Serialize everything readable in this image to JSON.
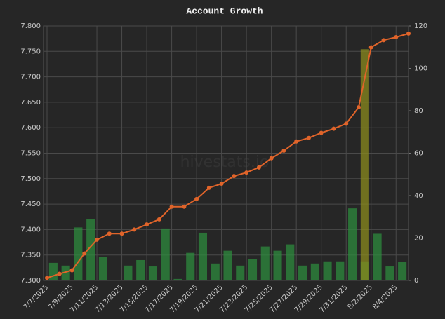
{
  "chart_data": {
    "type": "combo",
    "title": "Account Growth",
    "watermark": "hivestats.io",
    "categories": [
      "7/7/2025",
      null,
      "7/9/2025",
      null,
      "7/11/2025",
      null,
      "7/13/2025",
      null,
      "7/15/2025",
      null,
      "7/17/2025",
      null,
      "7/19/2025",
      null,
      "7/21/2025",
      null,
      "7/23/2025",
      null,
      "7/25/2025",
      null,
      "7/27/2025",
      null,
      "7/29/2025",
      null,
      "7/31/2025",
      null,
      "8/2/2025",
      null,
      "8/4/2025",
      null
    ],
    "series": [
      {
        "type": "bar",
        "axis": "y2",
        "color": "#2e8b3e",
        "values": [
          8.3,
          7,
          25,
          29,
          11,
          0,
          7,
          9.6,
          6.6,
          24.5,
          0.7,
          13,
          22.5,
          8,
          14,
          7,
          10,
          16,
          14,
          17,
          7,
          8,
          9,
          9,
          34,
          9,
          22,
          6.6,
          8.6,
          0.3
        ]
      },
      {
        "type": "bar",
        "axis": "y2",
        "color": "#8a8a1e",
        "values": [
          null,
          null,
          null,
          null,
          null,
          null,
          null,
          null,
          null,
          null,
          null,
          null,
          null,
          null,
          null,
          null,
          null,
          null,
          null,
          null,
          null,
          null,
          null,
          null,
          null,
          109,
          null,
          null,
          null,
          null
        ]
      },
      {
        "type": "line",
        "axis": "y",
        "color": "#e0642a",
        "values": [
          7.305,
          7.313,
          7.32,
          7.353,
          7.38,
          7.392,
          7.392,
          7.4,
          7.41,
          7.42,
          7.445,
          7.445,
          7.46,
          7.482,
          7.49,
          7.505,
          7.512,
          7.522,
          7.54,
          7.555,
          7.573,
          7.58,
          7.59,
          7.598,
          7.608,
          7.64,
          7.758,
          7.772,
          7.778,
          7.785
        ]
      }
    ],
    "ylim": [
      7.3,
      7.8
    ],
    "yticks": [
      {
        "value": 7.3,
        "label": "7.300"
      },
      {
        "value": 7.35,
        "label": "7.350"
      },
      {
        "value": 7.4,
        "label": "7.400"
      },
      {
        "value": 7.45,
        "label": "7.450"
      },
      {
        "value": 7.5,
        "label": "7.500"
      },
      {
        "value": 7.55,
        "label": "7.550"
      },
      {
        "value": 7.6,
        "label": "7.600"
      },
      {
        "value": 7.65,
        "label": "7.650"
      },
      {
        "value": 7.7,
        "label": "7.700"
      },
      {
        "value": 7.75,
        "label": "7.750"
      },
      {
        "value": 7.8,
        "label": "7.800"
      }
    ],
    "y2lim": [
      0,
      120
    ],
    "y2ticks": [
      0,
      20,
      40,
      60,
      80,
      100,
      120
    ],
    "grid": true
  }
}
